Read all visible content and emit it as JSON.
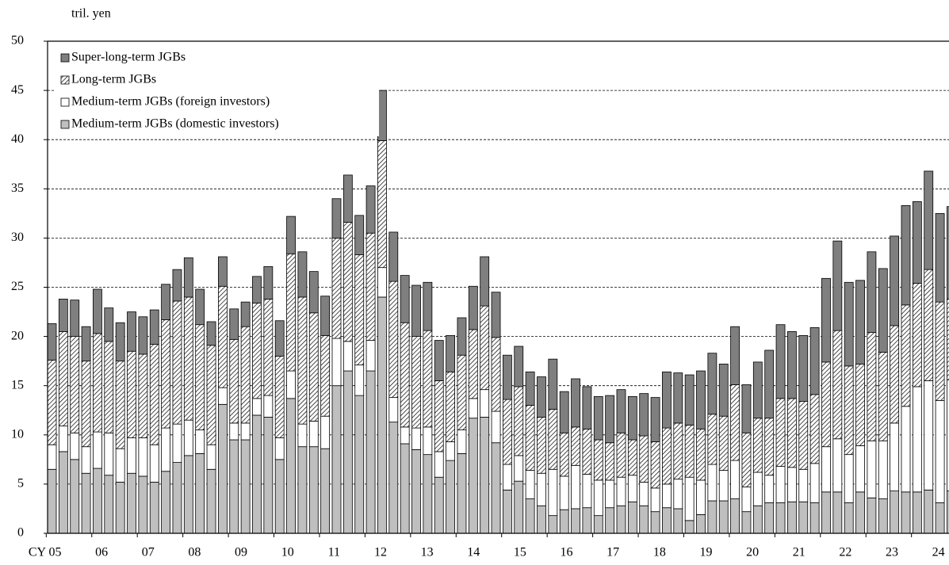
{
  "chart_data": {
    "type": "stacked_bar",
    "unit_label": "tril. yen",
    "categories": [
      "CY 05",
      null,
      null,
      null,
      "06",
      null,
      null,
      null,
      "07",
      null,
      null,
      null,
      "08",
      null,
      null,
      null,
      "09",
      null,
      null,
      null,
      "10",
      null,
      null,
      null,
      "11",
      null,
      null,
      null,
      "12",
      null,
      null,
      null,
      "13",
      null,
      null,
      null,
      "14",
      null,
      null,
      null,
      "15",
      null,
      null,
      null,
      "16",
      null,
      null,
      null,
      "17",
      null,
      null,
      null,
      "18",
      null,
      null,
      null,
      "19",
      null,
      null,
      null,
      "20",
      null,
      null,
      null,
      "21",
      null,
      null,
      null,
      "22",
      null,
      null,
      null,
      "23",
      null,
      null,
      null,
      "24",
      null,
      null,
      null
    ],
    "series": [
      {
        "name": "Medium-term JGBs (domestic investors)",
        "color": "#bfbfbf",
        "values": [
          6.5,
          8.3,
          7.5,
          6.1,
          6.6,
          5.9,
          5.2,
          6.1,
          5.8,
          5.2,
          6.3,
          7.2,
          7.9,
          8.1,
          6.5,
          13.1,
          9.5,
          9.5,
          12,
          11.8,
          7.5,
          13.7,
          8.8,
          8.8,
          8.6,
          15,
          16.5,
          14,
          16.5,
          24,
          11.3,
          9.1,
          8.5,
          8,
          5.7,
          7.4,
          8.1,
          11.7,
          11.8,
          9.2,
          4.4,
          5.3,
          3.5,
          2.8,
          1.8,
          2.4,
          2.5,
          2.6,
          1.8,
          2.6,
          2.8,
          3.2,
          2.8,
          2.2,
          2.6,
          2.5,
          1.3,
          1.9,
          3.3,
          3.3,
          3.5,
          2.2,
          2.8,
          3.1,
          3.1,
          3.2,
          3.2,
          3.1,
          4.2,
          4.2,
          3.1,
          4.2,
          3.6,
          3.5,
          4.3,
          4.2,
          4.2,
          4.4,
          3.1,
          4.3
        ]
      },
      {
        "name": "Medium-term JGBs (foreign investors)",
        "color": "#ffffff",
        "values": [
          2.5,
          2.6,
          2.7,
          2.7,
          3.7,
          4.3,
          3.4,
          3.6,
          3.9,
          3.8,
          4.4,
          3.9,
          3.6,
          2.4,
          2.5,
          1.7,
          1.7,
          1.7,
          1.7,
          2.2,
          2.2,
          2.8,
          2.3,
          2.6,
          3.3,
          4.8,
          3,
          3.1,
          3.1,
          3,
          2.5,
          1.7,
          2.2,
          2.8,
          2.6,
          1.9,
          2.4,
          2,
          2.8,
          3.2,
          2.6,
          2.6,
          2.9,
          3.3,
          4.7,
          3.4,
          4.4,
          3.4,
          3.6,
          2.8,
          2.9,
          2.7,
          2.4,
          2.4,
          2.4,
          3,
          4.4,
          3.5,
          3.7,
          3.1,
          3.9,
          2.5,
          3.4,
          2.8,
          3.7,
          3.5,
          3.3,
          4,
          4.6,
          5.4,
          4.9,
          4.7,
          5.8,
          5.9,
          6.9,
          8.7,
          10.7,
          11.1,
          10.4,
          11.3
        ]
      },
      {
        "name": "Long-term JGBs",
        "color": "#ffffff",
        "pattern": "hatch",
        "values": [
          8.6,
          9.6,
          9.8,
          8.7,
          10,
          9.3,
          8.9,
          8.8,
          8.5,
          10.2,
          11,
          12.5,
          12.5,
          10.7,
          10.1,
          10.3,
          8.5,
          9.8,
          9.7,
          9.8,
          8.3,
          11.9,
          12.9,
          11,
          8.2,
          10.2,
          12.1,
          11.2,
          10.9,
          12.9,
          11.8,
          10.6,
          9.3,
          9.8,
          7.2,
          7.1,
          7.6,
          7,
          8.5,
          7.5,
          6.6,
          7,
          6.6,
          5.7,
          6.1,
          4.4,
          3.9,
          4.6,
          4.1,
          3.8,
          4.5,
          3.6,
          4.7,
          4.7,
          5.7,
          5.7,
          5.3,
          5.2,
          5.1,
          5.5,
          7.7,
          5.5,
          5.5,
          5.8,
          6.9,
          7,
          6.9,
          7,
          8.6,
          11,
          9,
          8.3,
          11,
          9,
          9.9,
          10.3,
          10.5,
          11.3,
          10,
          8.2
        ]
      },
      {
        "name": "Super-long-term JGBs",
        "color": "#7f7f7f",
        "values": [
          3.7,
          3.3,
          3.7,
          3.5,
          4.5,
          3.4,
          3.9,
          4,
          3.8,
          3.5,
          3.6,
          3.2,
          4,
          3.6,
          2.4,
          3,
          3.1,
          2.5,
          2.7,
          3.3,
          3.6,
          3.8,
          4.6,
          4.2,
          4,
          4,
          4.8,
          4,
          4.8,
          5.1,
          5,
          4.8,
          5.2,
          4.9,
          4.1,
          3.7,
          3.8,
          4.4,
          5,
          4.6,
          4.5,
          4.1,
          3.4,
          4.1,
          5.1,
          4.2,
          4.9,
          4.3,
          4.4,
          4.8,
          4.4,
          4.4,
          4.3,
          4.5,
          5.7,
          5.1,
          5.1,
          5.9,
          6.2,
          5.3,
          5.9,
          4.9,
          5.7,
          6.9,
          7.5,
          6.8,
          6.7,
          6.8,
          8.5,
          9.1,
          8.5,
          8.5,
          8.2,
          8.5,
          9.1,
          10.1,
          8.3,
          10,
          9,
          9.4
        ]
      }
    ],
    "ylim": [
      0,
      50
    ],
    "yticks": [
      0,
      5,
      10,
      15,
      20,
      25,
      30,
      35,
      40,
      45,
      50
    ],
    "grid": true
  }
}
